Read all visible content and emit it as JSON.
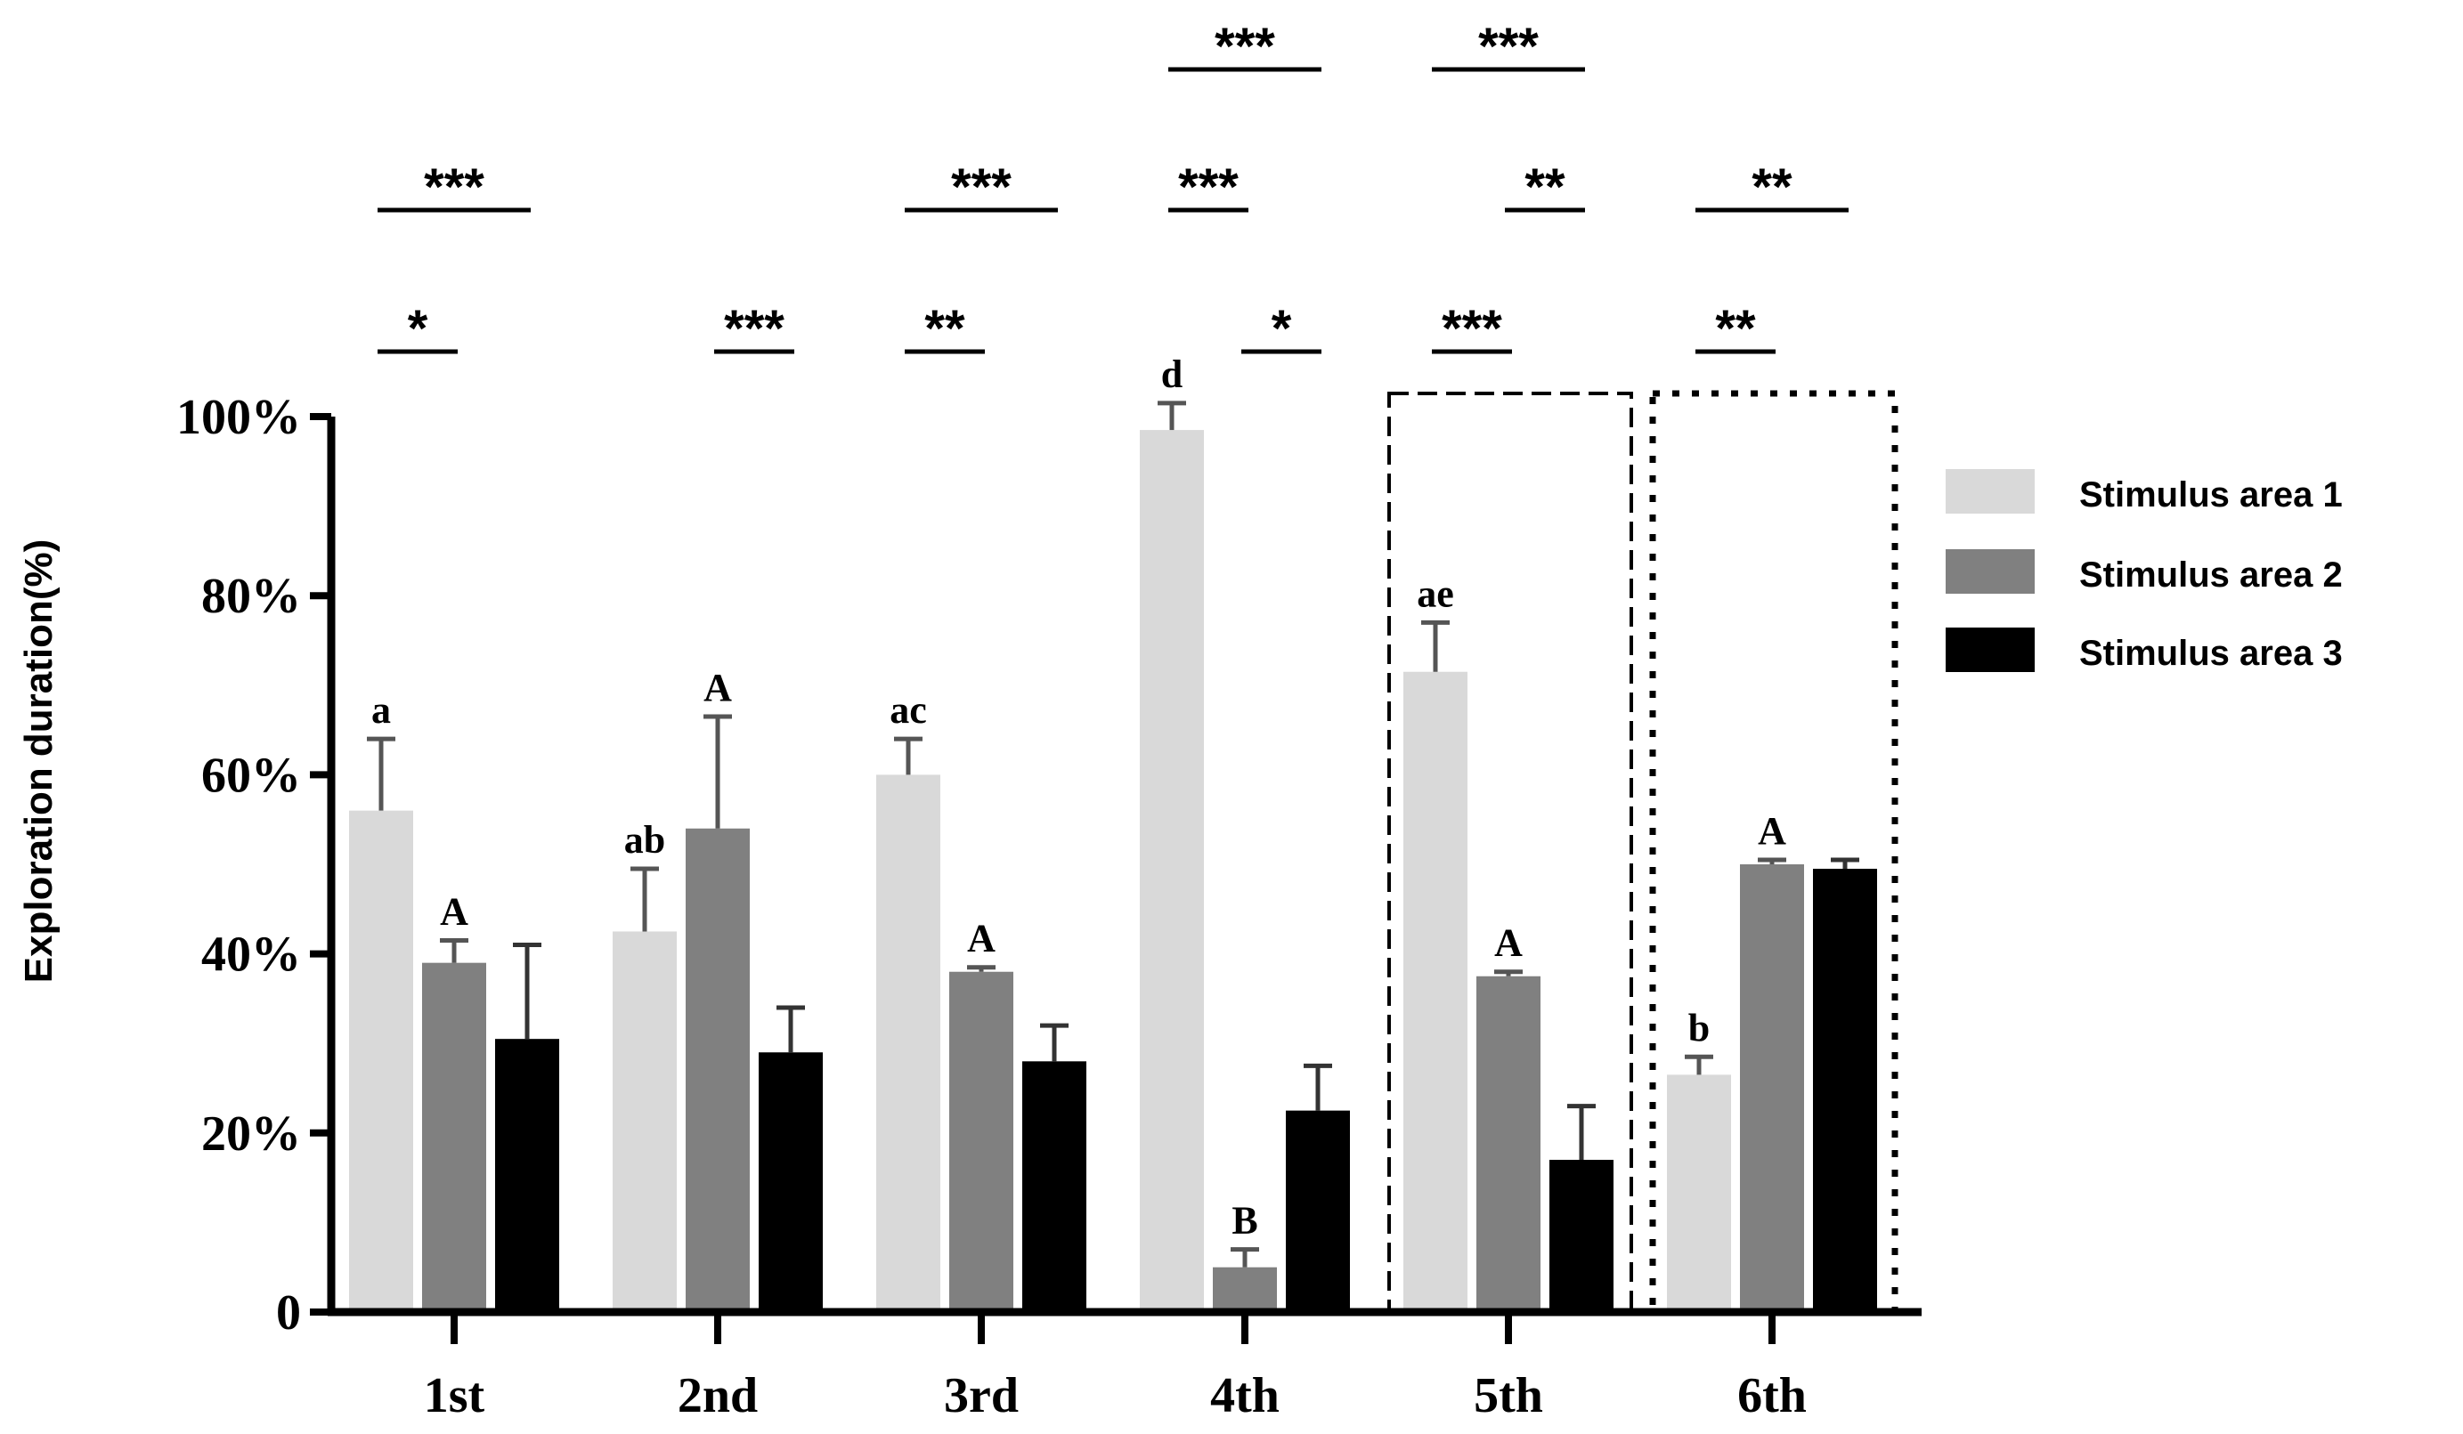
{
  "chart_data": {
    "type": "bar",
    "title": "",
    "xlabel": "",
    "ylabel": "Exploration duration(%)",
    "ylim": [
      0,
      100
    ],
    "yticks": [
      0,
      20,
      40,
      60,
      80,
      100
    ],
    "ytick_labels": [
      "0",
      "20%",
      "40%",
      "60%",
      "80%",
      "100%"
    ],
    "grid": false,
    "legend_position": "right",
    "categories": [
      "1st",
      "2nd",
      "3rd",
      "4th",
      "5th",
      "6th"
    ],
    "series": [
      {
        "name": "Stimulus area 1",
        "color": "#d9d9d9",
        "values": [
          56,
          42.5,
          60,
          98.5,
          71.5,
          26.5
        ],
        "errors": [
          8,
          7,
          4,
          3,
          5.5,
          2
        ],
        "letters": [
          "a",
          "ab",
          "ac",
          "d",
          "ae",
          "b"
        ]
      },
      {
        "name": "Stimulus area 2",
        "color": "#808080",
        "values": [
          39,
          54,
          38,
          5,
          37.5,
          50
        ],
        "errors": [
          2.5,
          12.5,
          0.5,
          2,
          0.5,
          0.5
        ],
        "letters": [
          "A",
          "A",
          "A",
          "B",
          "A",
          "A"
        ]
      },
      {
        "name": "Stimulus area 3",
        "color": "#000000",
        "values": [
          30.5,
          29,
          28,
          22.5,
          17,
          49.5
        ],
        "errors": [
          10.5,
          5,
          4,
          5,
          6,
          1
        ],
        "letters": [
          "",
          "",
          "",
          "",
          "",
          ""
        ]
      }
    ],
    "significance": [
      {
        "category": "1st",
        "pair": [
          1,
          3
        ],
        "label": "***",
        "row": "middle"
      },
      {
        "category": "1st",
        "pair": [
          1,
          2
        ],
        "label": "*",
        "row": "low"
      },
      {
        "category": "2nd",
        "pair": [
          2,
          3
        ],
        "label": "***",
        "row": "low"
      },
      {
        "category": "3rd",
        "pair": [
          1,
          3
        ],
        "label": "***",
        "row": "middle"
      },
      {
        "category": "3rd",
        "pair": [
          1,
          2
        ],
        "label": "**",
        "row": "low"
      },
      {
        "category": "4th",
        "pair": [
          1,
          3
        ],
        "label": "***",
        "row": "top"
      },
      {
        "category": "4th",
        "pair": [
          1,
          2
        ],
        "label": "***",
        "row": "middle"
      },
      {
        "category": "4th",
        "pair": [
          2,
          3
        ],
        "label": "*",
        "row": "low"
      },
      {
        "category": "5th",
        "pair": [
          1,
          3
        ],
        "label": "***",
        "row": "top"
      },
      {
        "category": "5th",
        "pair": [
          2,
          3
        ],
        "label": "**",
        "row": "middle"
      },
      {
        "category": "5th",
        "pair": [
          1,
          2
        ],
        "label": "***",
        "row": "low"
      },
      {
        "category": "6th",
        "pair": [
          1,
          3
        ],
        "label": "**",
        "row": "middle"
      },
      {
        "category": "6th",
        "pair": [
          1,
          2
        ],
        "label": "**",
        "row": "low"
      }
    ],
    "highlight_boxes": [
      {
        "category": "5th",
        "style": "dashed"
      },
      {
        "category": "6th",
        "style": "dotted"
      }
    ]
  }
}
